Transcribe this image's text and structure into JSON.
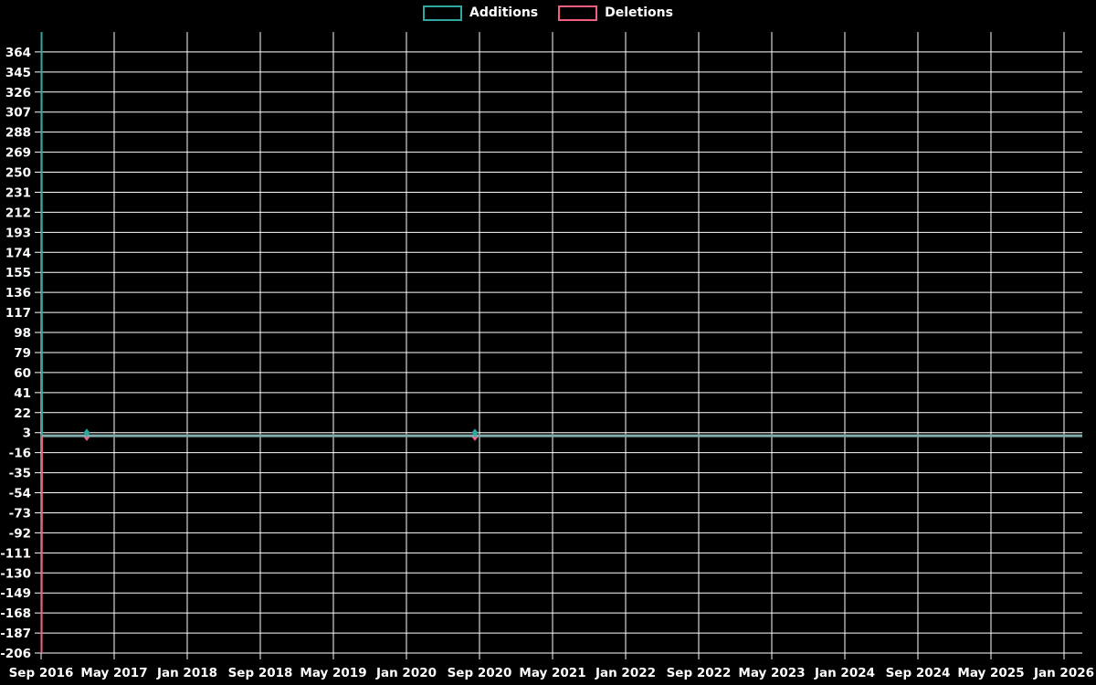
{
  "chart_data": {
    "type": "line",
    "title": "",
    "background_color": "#000000",
    "grid_color": "#ffffff",
    "text_color": "#ffffff",
    "legend_position": "top-center",
    "grid": true,
    "x_ticks": [
      "Sep 2016",
      "May 2017",
      "Jan 2018",
      "Sep 2018",
      "May 2019",
      "Jan 2020",
      "Sep 2020",
      "May 2021",
      "Jan 2022",
      "Sep 2022",
      "May 2023",
      "Jan 2024",
      "Sep 2024",
      "May 2025",
      "Jan 2026"
    ],
    "x_axis": {
      "start": "Sep 2016",
      "end": "Jan 2026",
      "months_per_tick": 8
    },
    "y_axis": {
      "ticks": [
        364,
        345,
        326,
        307,
        288,
        269,
        250,
        231,
        212,
        193,
        174,
        155,
        136,
        117,
        98,
        79,
        60,
        41,
        22,
        3,
        -16,
        -35,
        -54,
        -73,
        -92,
        -111,
        -130,
        -149,
        -168,
        -187,
        -206
      ],
      "tick_step": 19,
      "range_top": 383,
      "range_bottom": -206
    },
    "series": [
      {
        "name": "Additions",
        "color": "#2ea8a0",
        "flat_color": "#7fabaa",
        "segments": [
          {
            "use": "color",
            "width": 2,
            "points": [
              {
                "m": 0.05,
                "v": 383
              },
              {
                "m": 0.1,
                "v": 0
              }
            ]
          },
          {
            "use": "flat_color",
            "width": 3,
            "points": [
              {
                "m": 0.1,
                "v": 0
              },
              {
                "m": 114,
                "v": 0
              }
            ]
          }
        ],
        "markers": [
          {
            "date": "Feb 2017",
            "m": 5,
            "v": 3
          },
          {
            "date": "Aug 2020",
            "m": 47.5,
            "v": 3
          }
        ]
      },
      {
        "name": "Deletions",
        "color": "#f0607e",
        "segments": [
          {
            "use": "color",
            "width": 2,
            "points": [
              {
                "m": 0.05,
                "v": -206
              },
              {
                "m": 0.1,
                "v": 0
              }
            ]
          },
          {
            "use": "color",
            "width": 2,
            "points": [
              {
                "m": 0.1,
                "v": 0
              },
              {
                "m": 114,
                "v": 0
              }
            ]
          }
        ],
        "markers": [
          {
            "date": "Feb 2017",
            "m": 5,
            "v": -1
          },
          {
            "date": "Aug 2020",
            "m": 47.5,
            "v": -1
          }
        ]
      }
    ]
  }
}
